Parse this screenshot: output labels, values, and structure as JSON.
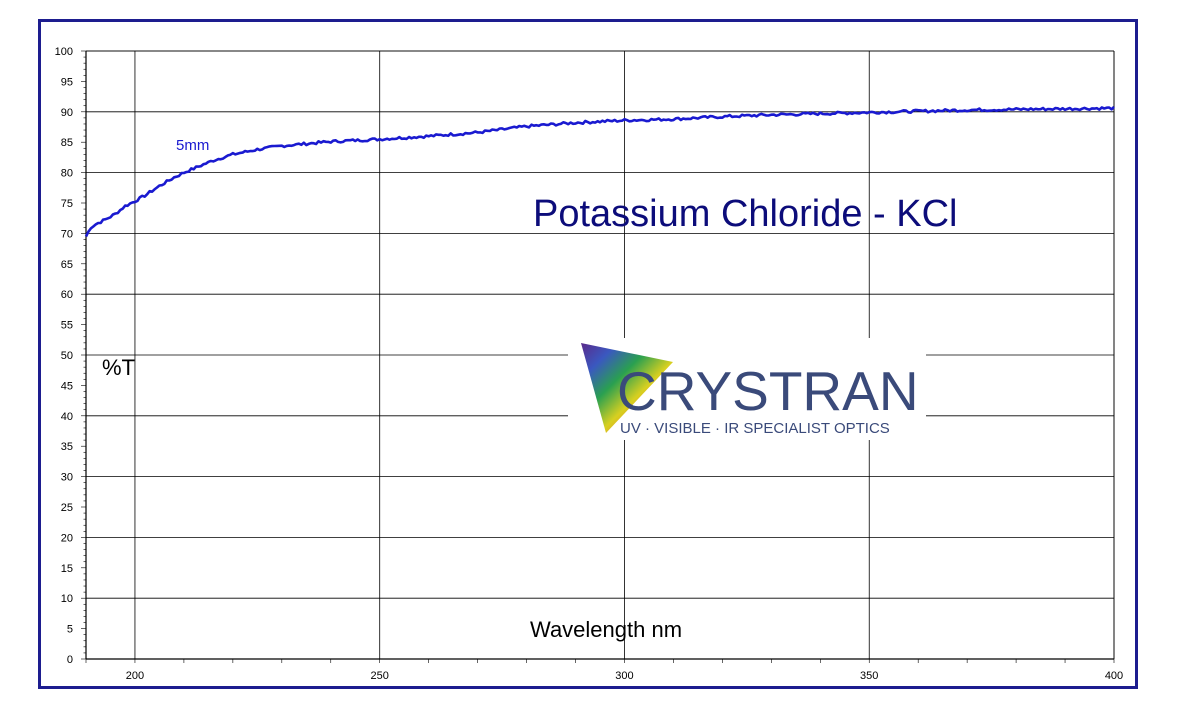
{
  "chart_data": {
    "type": "line",
    "title": "Potassium Chloride - KCl",
    "xlabel": "Wavelength nm",
    "ylabel": "%T",
    "xlim": [
      190,
      400
    ],
    "ylim": [
      0,
      100
    ],
    "grid": true,
    "x_ticks": [
      200,
      250,
      300,
      350,
      400
    ],
    "y_ticks": [
      0,
      5,
      10,
      15,
      20,
      25,
      30,
      35,
      40,
      45,
      50,
      55,
      60,
      65,
      70,
      75,
      80,
      85,
      90,
      95,
      100
    ],
    "series": [
      {
        "name": "5mm",
        "color": "#1a1ad0",
        "x": [
          190,
          191,
          192,
          194,
          196,
          198,
          200,
          202,
          205,
          208,
          210,
          213,
          216,
          220,
          225,
          230,
          240,
          250,
          260,
          270,
          280,
          290,
          300,
          310,
          320,
          330,
          340,
          350,
          360,
          370,
          380,
          390,
          400
        ],
        "y": [
          69.5,
          71,
          71.5,
          72.3,
          73.2,
          74.5,
          75.3,
          76.2,
          77.8,
          79.2,
          80,
          81,
          82,
          83,
          83.8,
          84.4,
          85.1,
          85.5,
          86,
          86.6,
          87.6,
          88.2,
          88.6,
          88.8,
          89.2,
          89.5,
          89.7,
          89.9,
          90.1,
          90.3,
          90.4,
          90.5,
          90.6
        ]
      }
    ]
  },
  "logo": {
    "name": "CRYSTRAN",
    "tagline": "UV · VISIBLE · IR SPECIALIST OPTICS"
  },
  "colors": {
    "frame": "#1d1d8f",
    "title": "#0c0c7a",
    "logo_text": "#3a4a7a"
  }
}
